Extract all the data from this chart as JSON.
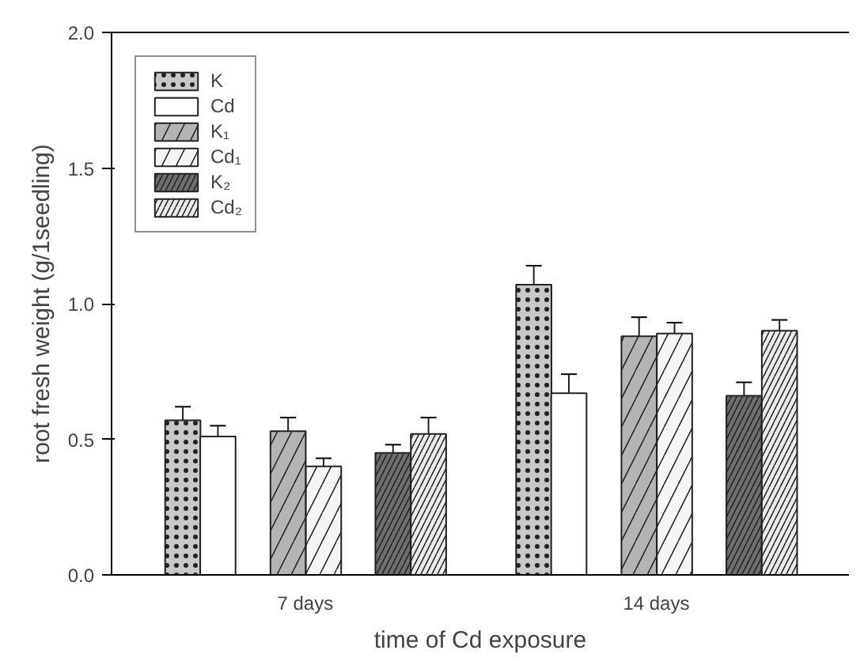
{
  "chart_data": {
    "type": "bar",
    "xlabel": "time of Cd exposure",
    "ylabel": "root fresh weight (g/1seedling)",
    "categories": [
      "7 days",
      "14 days"
    ],
    "series": [
      {
        "name": "K",
        "color": "#c8c8c8",
        "values": [
          0.57,
          1.07
        ],
        "errors": [
          [
            0.57,
            0.62
          ],
          [
            1.07,
            1.14
          ]
        ]
      },
      {
        "name": "Cd",
        "color": "#ffffff",
        "values": [
          0.51,
          0.67
        ],
        "errors": [
          [
            0.51,
            0.55
          ],
          [
            0.67,
            0.74
          ]
        ]
      },
      {
        "name": "K₁",
        "color": "#b4b4b4",
        "values": [
          0.53,
          0.88
        ],
        "errors": [
          [
            0.53,
            0.58
          ],
          [
            0.88,
            0.95
          ]
        ]
      },
      {
        "name": "Cd₁",
        "color": "#f5f5f5",
        "values": [
          0.4,
          0.89
        ],
        "errors": [
          [
            0.4,
            0.43
          ],
          [
            0.89,
            0.93
          ]
        ]
      },
      {
        "name": "K₂",
        "color": "#6e6e6e",
        "values": [
          0.45,
          0.66
        ],
        "errors": [
          [
            0.45,
            0.48
          ],
          [
            0.66,
            0.71
          ]
        ]
      },
      {
        "name": "Cd₂",
        "color": "#ebebeb",
        "values": [
          0.52,
          0.9
        ],
        "errors": [
          [
            0.52,
            0.58
          ],
          [
            0.9,
            0.94
          ]
        ]
      }
    ],
    "ylim": [
      0,
      2.0
    ],
    "yticks": [
      {
        "value": 0,
        "label": "0.0"
      },
      {
        "value": 0.5,
        "label": "0.5"
      },
      {
        "value": 1.0,
        "label": "1.0"
      },
      {
        "value": 1.5,
        "label": "1.5"
      },
      {
        "value": 2.0,
        "label": "2.0"
      }
    ],
    "grid": false,
    "legend": "top left"
  }
}
